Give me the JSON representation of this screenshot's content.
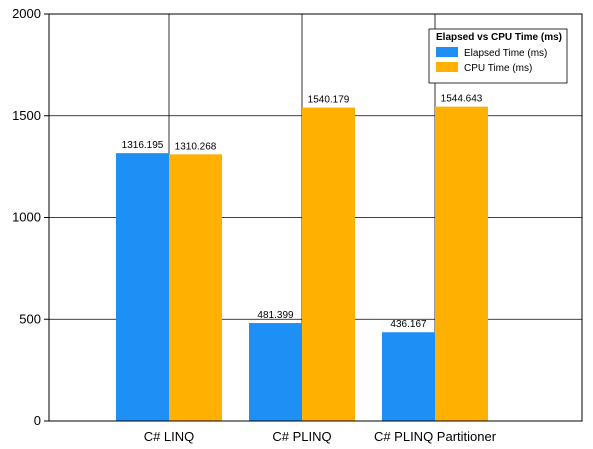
{
  "chart_data": {
    "type": "bar",
    "title": "",
    "xlabel": "",
    "ylabel": "",
    "categories": [
      "C# LINQ",
      "C# PLINQ",
      "C# PLINQ Partitioner"
    ],
    "series": [
      {
        "name": "Elapsed Time (ms)",
        "color": "#1e8ff5",
        "values": [
          1316.195,
          481.399,
          436.167
        ],
        "labels": [
          "1316.195",
          "481.399",
          "436.167"
        ]
      },
      {
        "name": "CPU Time (ms)",
        "color": "#ffb000",
        "values": [
          1310.268,
          1540.179,
          1544.643
        ],
        "labels": [
          "1310.268",
          "1540.179",
          "1544.643"
        ]
      }
    ],
    "ylim": [
      0,
      2000
    ],
    "yticks": [
      0,
      500,
      1000,
      1500,
      2000
    ],
    "grid": true,
    "legend": {
      "title": "Elapsed vs CPU Time (ms)",
      "position": "top-right"
    }
  }
}
